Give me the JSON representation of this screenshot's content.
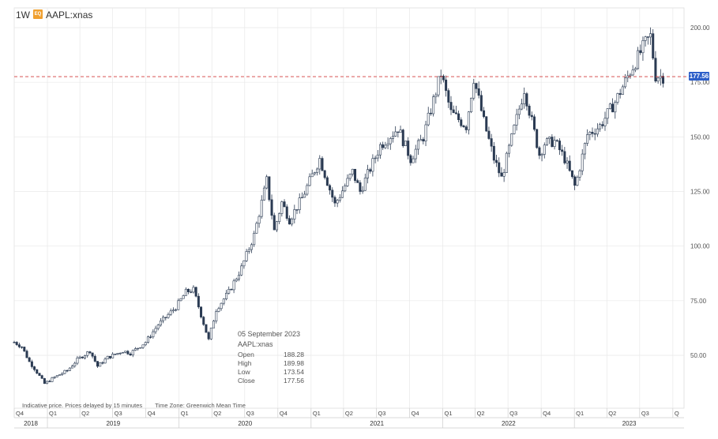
{
  "header": {
    "interval": "1W",
    "symbol_badge": "EQ",
    "symbol": "AAPL:xnas"
  },
  "tooltip": {
    "date": "05 September 2023",
    "symbol": "AAPL:xnas",
    "rows": [
      {
        "label": "Open",
        "value": "188.28"
      },
      {
        "label": "High",
        "value": "189.98"
      },
      {
        "label": "Low",
        "value": "173.54"
      },
      {
        "label": "Close",
        "value": "177.56"
      }
    ]
  },
  "footer_note": {
    "text": "Indicative price. Prices delayed by 15 minutes",
    "timezone": "Time Zone: Greenwich Mean Time"
  },
  "colors": {
    "candle": "#2a3a52",
    "grid": "#e8e8e8",
    "price_line": "#d23b3b",
    "price_tag": "#2d5fc9"
  },
  "chart_data": {
    "type": "candlestick",
    "interval": "1W",
    "series_name": "AAPL:xnas",
    "y_ticks": [
      "200.00",
      "175.00",
      "150.00",
      "125.00",
      "100.00",
      "75.00",
      "50.00"
    ],
    "y_tick_values": [
      200,
      175,
      150,
      125,
      100,
      75,
      50
    ],
    "ylim": [
      30,
      205
    ],
    "current_price": 177.56,
    "current_price_label": "177.56",
    "quarter_ticks": [
      "Q4",
      "Q1",
      "Q2",
      "Q3",
      "Q4",
      "Q1",
      "Q2",
      "Q3",
      "Q4",
      "Q1",
      "Q2",
      "Q3",
      "Q4",
      "Q1",
      "Q2",
      "Q3",
      "Q4",
      "Q1",
      "Q2",
      "Q3",
      "Q"
    ],
    "year_labels": [
      "2018",
      "2019",
      "2020",
      "2021",
      "2022",
      "2023"
    ],
    "x_start": "2018-10-01",
    "x_end": "2023-11-01",
    "grid": true,
    "anchors": [
      [
        "2018-10-01",
        56
      ],
      [
        "2018-10-22",
        54
      ],
      [
        "2018-11-12",
        47
      ],
      [
        "2018-11-26",
        44
      ],
      [
        "2018-12-24",
        37
      ],
      [
        "2019-01-21",
        40
      ],
      [
        "2019-02-25",
        43
      ],
      [
        "2019-03-25",
        48
      ],
      [
        "2019-04-29",
        52
      ],
      [
        "2019-05-20",
        45
      ],
      [
        "2019-06-17",
        49
      ],
      [
        "2019-07-29",
        52
      ],
      [
        "2019-08-19",
        51
      ],
      [
        "2019-09-30",
        56
      ],
      [
        "2019-11-04",
        64
      ],
      [
        "2019-12-23",
        72
      ],
      [
        "2020-01-20",
        79
      ],
      [
        "2020-02-10",
        80
      ],
      [
        "2020-03-23",
        57
      ],
      [
        "2020-04-13",
        71
      ],
      [
        "2020-05-18",
        79
      ],
      [
        "2020-06-22",
        90
      ],
      [
        "2020-07-27",
        105
      ],
      [
        "2020-08-31",
        130
      ],
      [
        "2020-09-21",
        107
      ],
      [
        "2020-10-12",
        120
      ],
      [
        "2020-11-02",
        112
      ],
      [
        "2020-12-07",
        122
      ],
      [
        "2021-01-25",
        140
      ],
      [
        "2021-03-08",
        119
      ],
      [
        "2021-04-26",
        134
      ],
      [
        "2021-05-17",
        125
      ],
      [
        "2021-07-12",
        146
      ],
      [
        "2021-08-30",
        154
      ],
      [
        "2021-10-04",
        140
      ],
      [
        "2021-11-08",
        150
      ],
      [
        "2021-12-27",
        179
      ],
      [
        "2022-01-24",
        161
      ],
      [
        "2022-03-07",
        155
      ],
      [
        "2022-03-28",
        177
      ],
      [
        "2022-04-25",
        157
      ],
      [
        "2022-05-23",
        140
      ],
      [
        "2022-06-13",
        131
      ],
      [
        "2022-08-15",
        172
      ],
      [
        "2022-09-26",
        142
      ],
      [
        "2022-10-10",
        147
      ],
      [
        "2022-11-07",
        148
      ],
      [
        "2022-12-05",
        140
      ],
      [
        "2023-01-03",
        127
      ],
      [
        "2023-02-06",
        151
      ],
      [
        "2023-03-13",
        155
      ],
      [
        "2023-04-24",
        166
      ],
      [
        "2023-06-05",
        180
      ],
      [
        "2023-07-17",
        193
      ],
      [
        "2023-07-31",
        196
      ],
      [
        "2023-08-14",
        178
      ],
      [
        "2023-09-04",
        177.56
      ]
    ]
  }
}
